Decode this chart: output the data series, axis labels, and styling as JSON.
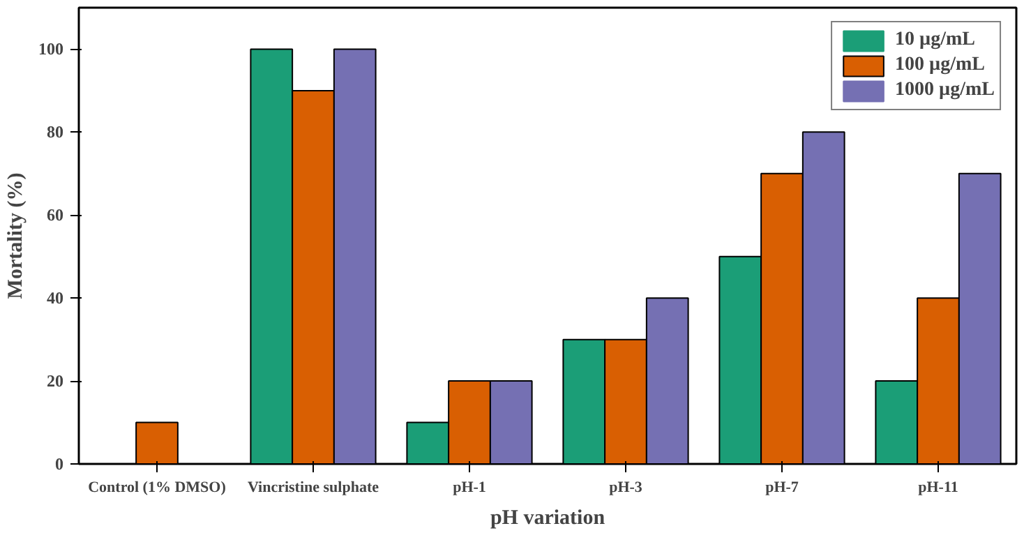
{
  "chart_data": {
    "type": "bar",
    "xlabel": "pH variation",
    "ylabel": "Mortality (%)",
    "categories": [
      "Control (1% DMSO)",
      "Vincristine sulphate",
      "pH-1",
      "pH-3",
      "pH-7",
      "pH-11"
    ],
    "series": [
      {
        "name": "10 µg/mL",
        "color": "#1b9e77",
        "values": [
          0,
          100,
          10,
          30,
          50,
          20
        ]
      },
      {
        "name": "100 µg/mL",
        "color": "#d95f02",
        "values": [
          10,
          90,
          20,
          30,
          70,
          40
        ]
      },
      {
        "name": "1000 µg/mL",
        "color": "#7570b3",
        "values": [
          0,
          100,
          20,
          40,
          80,
          70
        ]
      }
    ],
    "ylim": [
      0,
      110
    ],
    "yticks": [
      0,
      20,
      40,
      60,
      80,
      100
    ],
    "grid": false,
    "legend": "top right"
  }
}
